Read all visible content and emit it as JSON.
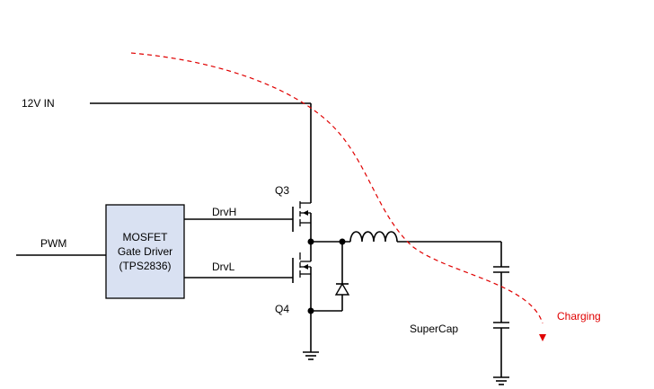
{
  "labels": {
    "vin": "12V IN",
    "pwm": "PWM",
    "drvh": "DrvH",
    "drvl": "DrvL",
    "q3": "Q3",
    "q4": "Q4",
    "supercap": "SuperCap",
    "charging": "Charging"
  },
  "driver": {
    "line1": "MOSFET",
    "line2": "Gate Driver",
    "line3": "(TPS2836)"
  },
  "colors": {
    "driver_fill": "#d9e1f2",
    "charging": "#e00000"
  }
}
